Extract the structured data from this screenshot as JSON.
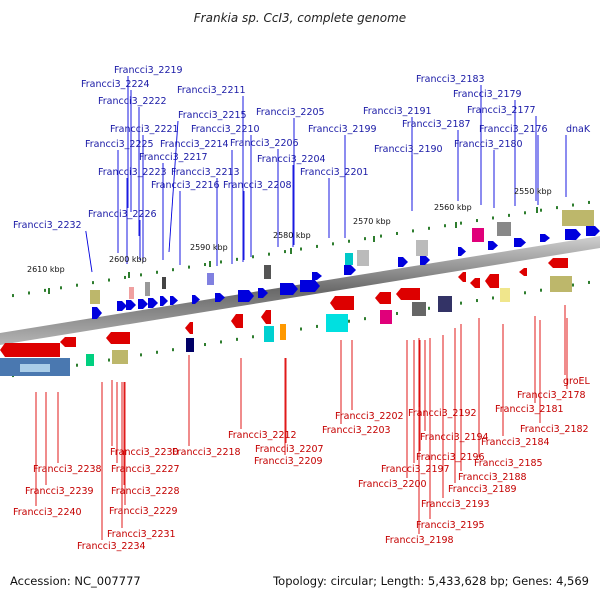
{
  "title": "Frankia sp. CcI3, complete genome",
  "accession": "Accession: NC_007777",
  "summary": "Topology: circular; Length: 5,433,628 bp; Genes: 4,569",
  "scale_labels": [
    "2550 kbp",
    "2560 kbp",
    "2570 kbp",
    "2580 kbp",
    "2590 kbp",
    "2600 kbp",
    "2610 kbp"
  ],
  "top_labels": [
    "Francci3_2219",
    "Francci3_2224",
    "Francci3_2222",
    "Francci3_2215",
    "Francci3_2211",
    "Francci3_2221",
    "Francci3_2210",
    "Francci3_2225",
    "Francci3_2214",
    "Francci3_2206",
    "Francci3_2217",
    "Francci3_2205",
    "Francci3_2199",
    "Francci3_2223",
    "Francci3_2213",
    "Francci3_2204",
    "Francci3_2216",
    "Francci3_2208",
    "Francci3_2201",
    "Francci3_2226",
    "Francci3_2232",
    "Francci3_2191",
    "Francci3_2187",
    "Francci3_2190",
    "Francci3_2183",
    "Francci3_2179",
    "Francci3_2177",
    "Francci3_2176",
    "dnaK",
    "Francci3_2180"
  ],
  "bottom_labels": [
    "groEL",
    "Francci3_2178",
    "Francci3_2181",
    "Francci3_2182",
    "Francci3_2184",
    "Francci3_2185",
    "Francci3_2188",
    "Francci3_2189",
    "Francci3_2193",
    "Francci3_2195",
    "Francci3_2198",
    "Francci3_2192",
    "Francci3_2194",
    "Francci3_2196",
    "Francci3_2197",
    "Francci3_2200",
    "Francci3_2202",
    "Francci3_2203",
    "Francci3_2207",
    "Francci3_2209",
    "Francci3_2212",
    "Francci3_2218",
    "Francci3_2230",
    "Francci3_2227",
    "Francci3_2228",
    "Francci3_2229",
    "Francci3_2231",
    "Francci3_2234",
    "Francci3_2238",
    "Francci3_2239",
    "Francci3_2240"
  ],
  "colors": {
    "forward_strand": "#0000dd",
    "reverse_strand": "#dd0000",
    "backbone": "#808080",
    "ticks": "#2e7d2e"
  }
}
